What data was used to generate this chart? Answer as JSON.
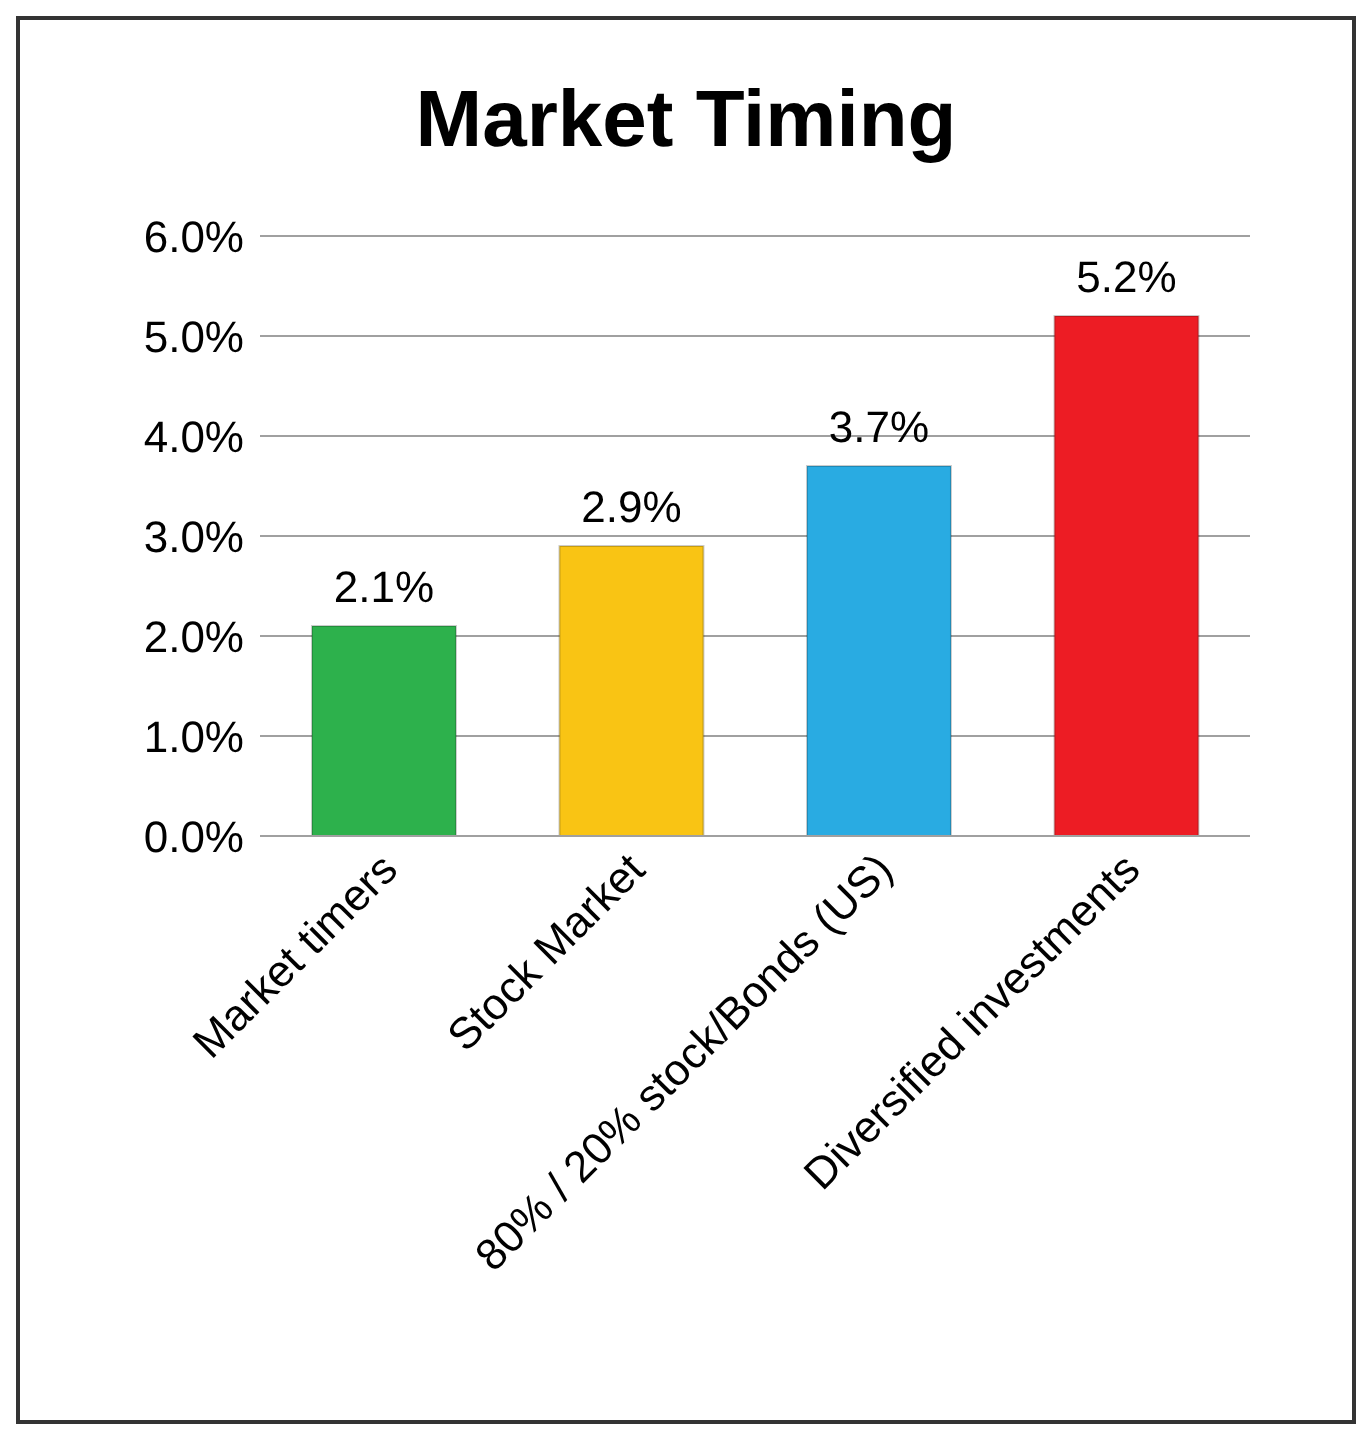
{
  "chart_data": {
    "type": "bar",
    "title": "Market Timing",
    "categories": [
      "Market timers",
      "Stock Market",
      "80% / 20% stock/Bonds (US)",
      "Diversified investments"
    ],
    "values": [
      2.1,
      2.9,
      3.7,
      5.2
    ],
    "colors": [
      "#2db14c",
      "#f9c414",
      "#29abe2",
      "#ed1c24"
    ],
    "value_labels": [
      "2.1%",
      "2.9%",
      "3.7%",
      "5.2%"
    ],
    "ylim": [
      0,
      6
    ],
    "yticks": [
      {
        "value": 0,
        "label": "0.0%"
      },
      {
        "value": 1,
        "label": "1.0%"
      },
      {
        "value": 2,
        "label": "2.0%"
      },
      {
        "value": 3,
        "label": "3.0%"
      },
      {
        "value": 4,
        "label": "4.0%"
      },
      {
        "value": 5,
        "label": "5.0%"
      },
      {
        "value": 6,
        "label": "6.0%"
      }
    ],
    "grid": "y",
    "legend": false
  }
}
